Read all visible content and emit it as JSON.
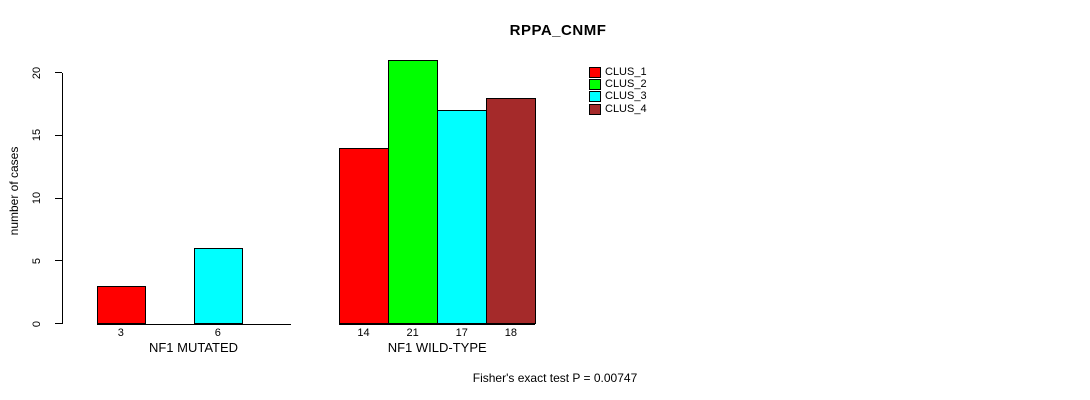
{
  "chart_data": {
    "type": "bar",
    "title": "RPPA_CNMF",
    "ylabel": "number of cases",
    "xlabel": "",
    "yticks": [
      0,
      5,
      10,
      15,
      20
    ],
    "ylim": [
      0,
      21
    ],
    "grid": false,
    "legend_position": "top-right-outside",
    "legend": [
      {
        "label": "CLUS_1",
        "color": "#ff0000"
      },
      {
        "label": "CLUS_2",
        "color": "#00ff00"
      },
      {
        "label": "CLUS_3",
        "color": "#00ffff"
      },
      {
        "label": "CLUS_4",
        "color": "#a52a2a"
      }
    ],
    "groups": [
      {
        "label": "NF1 MUTATED",
        "slots": 4,
        "bars": [
          {
            "slot": 0,
            "cluster": "CLUS_1",
            "value": 3,
            "color": "#ff0000"
          },
          {
            "slot": 2,
            "cluster": "CLUS_3",
            "value": 6,
            "color": "#00ffff"
          }
        ]
      },
      {
        "label": "NF1 WILD-TYPE",
        "slots": 4,
        "bars": [
          {
            "slot": 0,
            "cluster": "CLUS_1",
            "value": 14,
            "color": "#ff0000"
          },
          {
            "slot": 1,
            "cluster": "CLUS_2",
            "value": 21,
            "color": "#00ff00"
          },
          {
            "slot": 2,
            "cluster": "CLUS_3",
            "value": 17,
            "color": "#00ffff"
          },
          {
            "slot": 3,
            "cluster": "CLUS_4",
            "value": 18,
            "color": "#a52a2a"
          }
        ]
      }
    ],
    "footnote": "Fisher's exact test P = 0.00747"
  },
  "colors": {
    "axis": "#000000",
    "background": "#ffffff",
    "text": "#000000"
  }
}
